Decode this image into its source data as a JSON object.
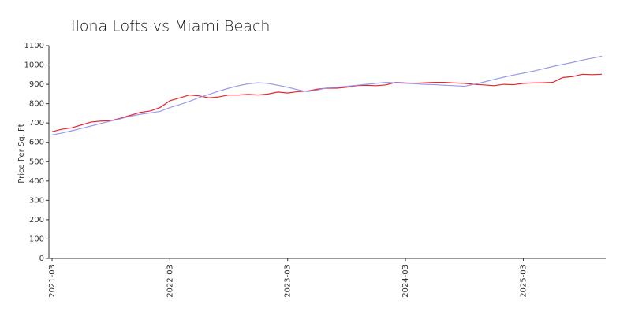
{
  "chart_data": {
    "type": "line",
    "title": "Ilona Lofts vs Miami Beach",
    "y_label": "Price Per Sq. Ft",
    "categories": [
      "2021-03",
      null,
      null,
      null,
      null,
      null,
      null,
      null,
      null,
      null,
      null,
      null,
      "2022-03",
      null,
      null,
      null,
      null,
      null,
      null,
      null,
      null,
      null,
      null,
      null,
      "2023-03",
      null,
      null,
      null,
      null,
      null,
      null,
      null,
      null,
      null,
      null,
      null,
      "2024-03",
      null,
      null,
      null,
      null,
      null,
      null,
      null,
      null,
      null,
      null,
      null,
      "2025-03",
      null,
      null,
      null,
      null,
      null,
      null,
      null,
      null
    ],
    "series": [
      {
        "color": "#e8262a",
        "values": [
          655,
          668,
          675,
          690,
          705,
          710,
          712,
          725,
          740,
          755,
          762,
          780,
          815,
          830,
          845,
          840,
          830,
          835,
          845,
          845,
          848,
          845,
          850,
          860,
          855,
          862,
          865,
          875,
          880,
          880,
          885,
          893,
          895,
          893,
          897,
          910,
          907,
          905,
          908,
          910,
          910,
          907,
          905,
          900,
          897,
          893,
          900,
          898,
          905,
          907,
          908,
          910,
          935,
          940,
          952,
          950,
          952
        ]
      },
      {
        "color": "#9999ee",
        "values": [
          638,
          648,
          660,
          672,
          685,
          698,
          710,
          722,
          735,
          745,
          752,
          760,
          780,
          795,
          812,
          832,
          848,
          865,
          880,
          893,
          903,
          908,
          905,
          895,
          885,
          872,
          862,
          870,
          882,
          885,
          890,
          895,
          900,
          905,
          910,
          908,
          905,
          903,
          900,
          898,
          895,
          893,
          890,
          900,
          912,
          925,
          937,
          948,
          958,
          968,
          980,
          992,
          1003,
          1013,
          1025,
          1035,
          1045
        ]
      }
    ],
    "ylim": [
      0,
      1100
    ],
    "yticks": [
      0,
      100,
      200,
      300,
      400,
      500,
      600,
      700,
      800,
      900,
      1000,
      1100
    ]
  }
}
